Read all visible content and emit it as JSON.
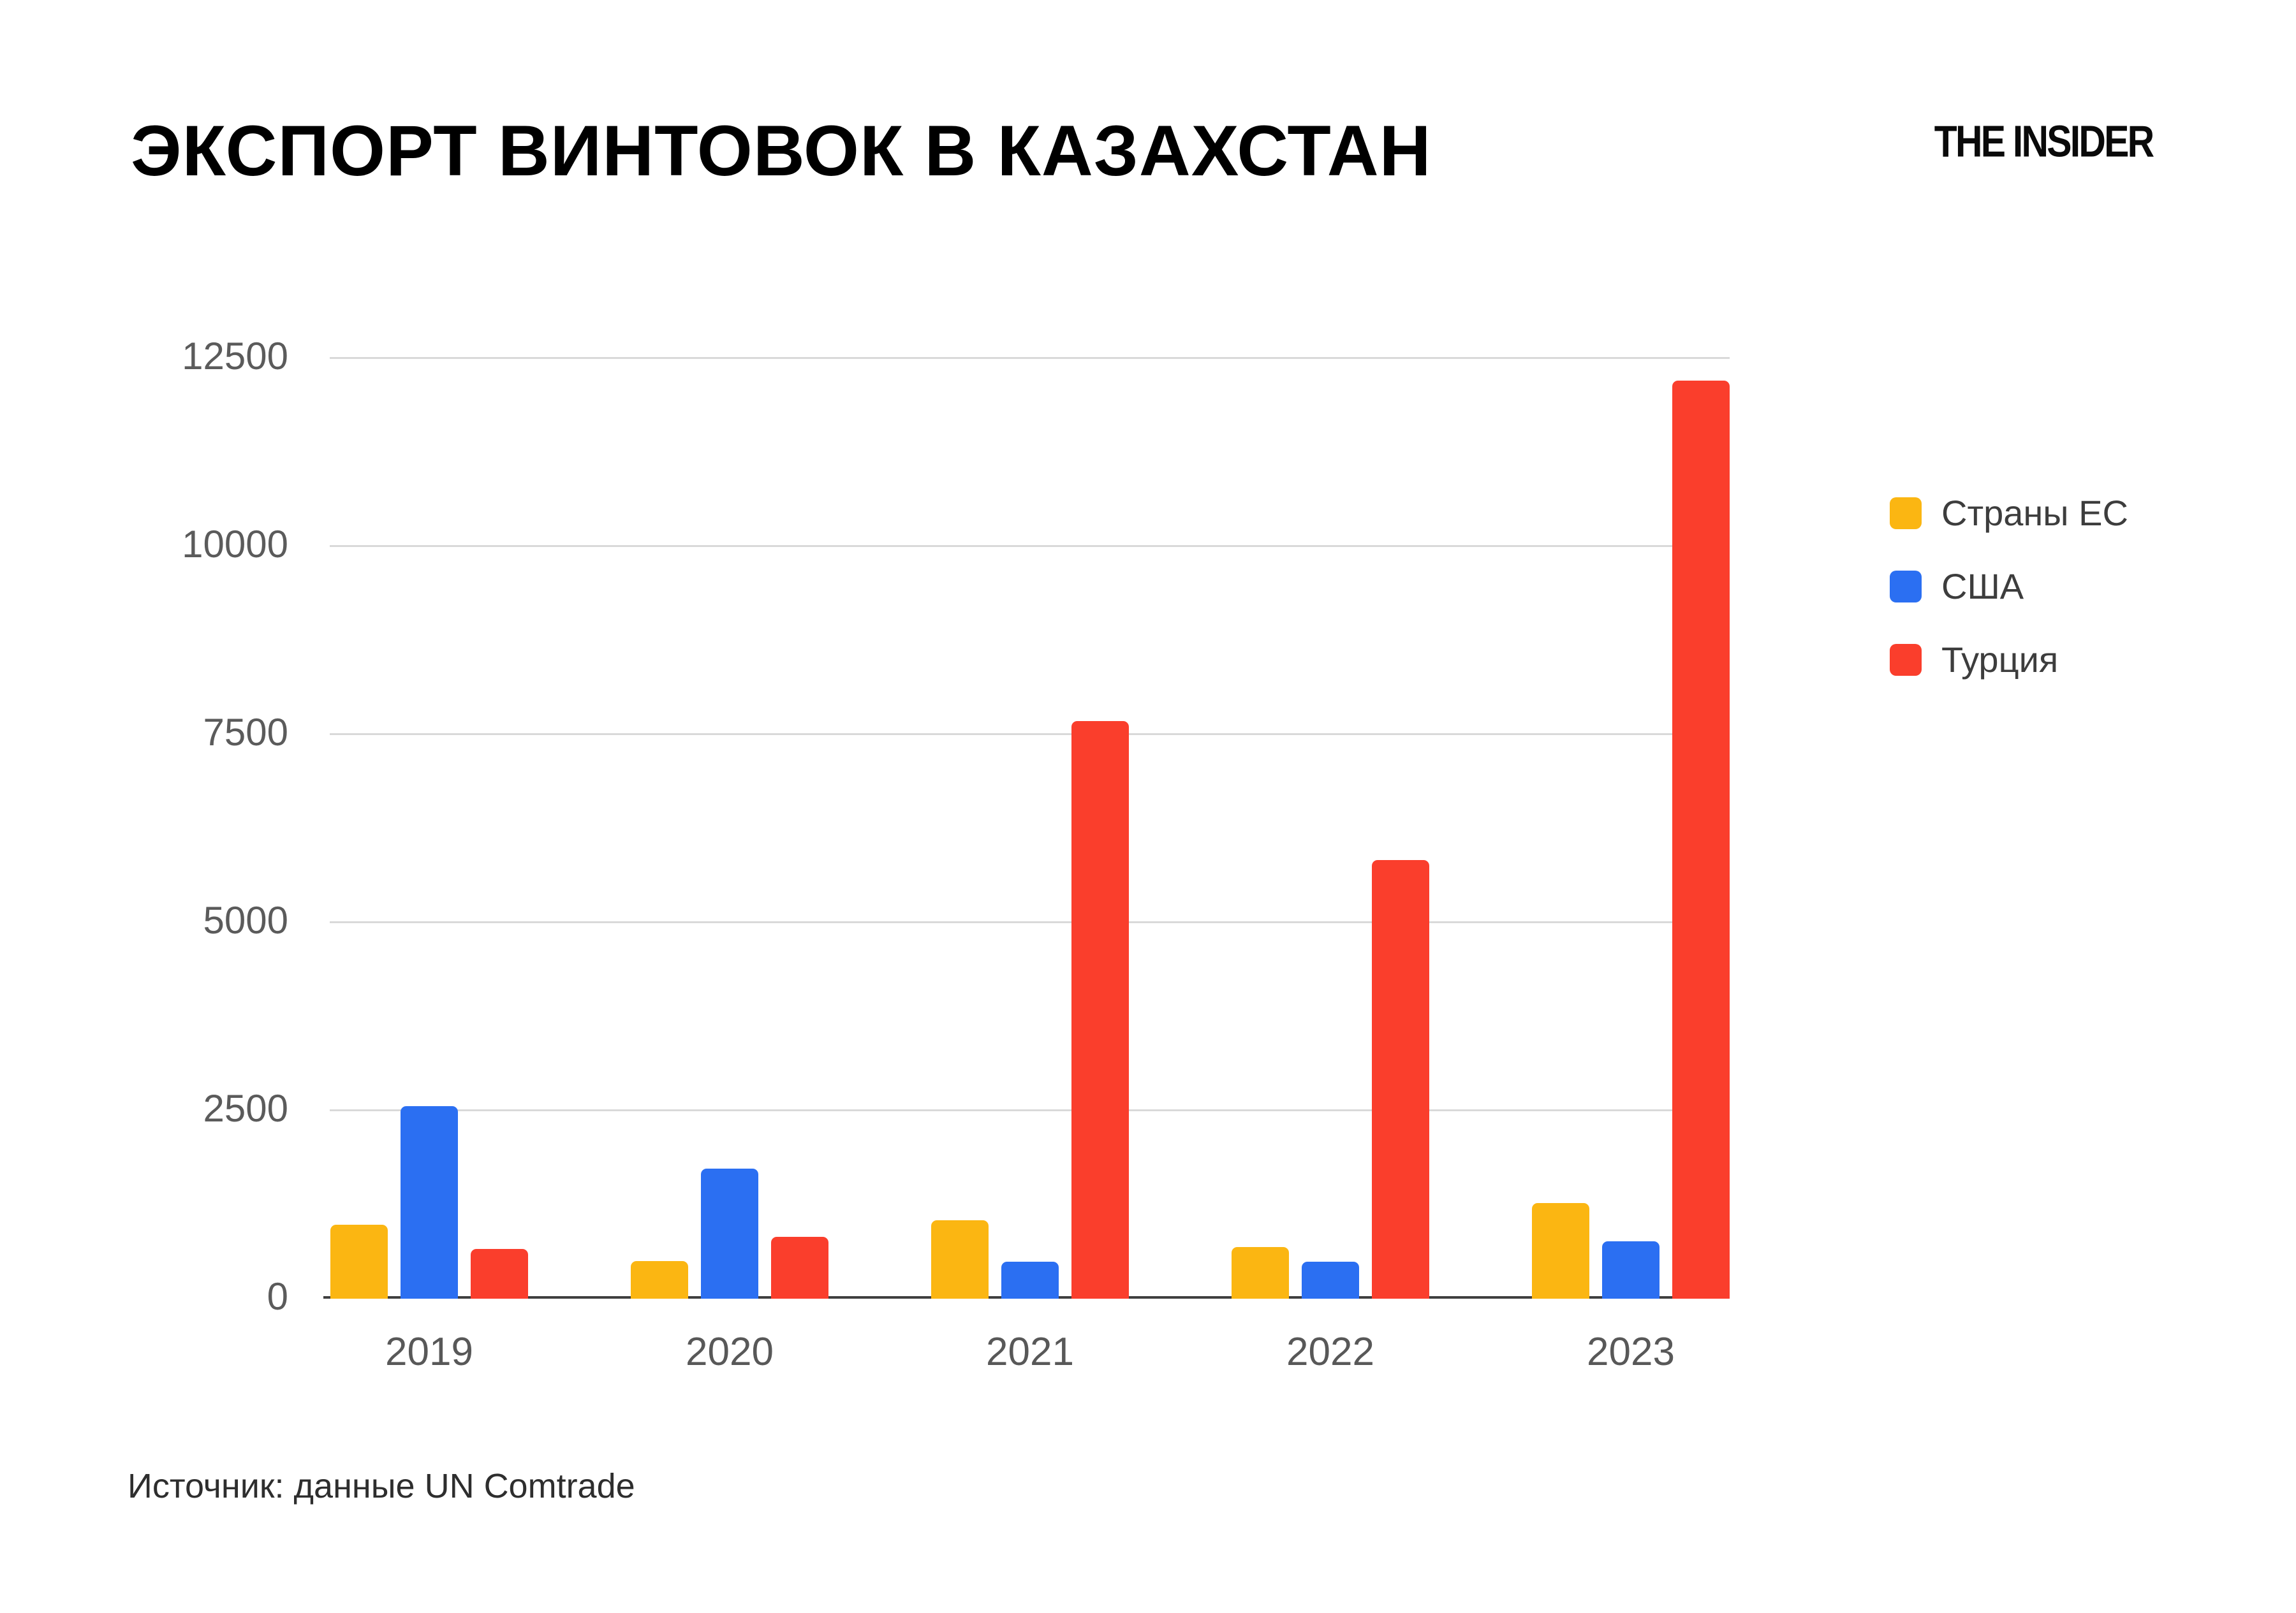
{
  "header": {
    "title": "ЭКСПОРТ ВИНТОВОК В КАЗАХСТАН",
    "brand": "THE INSIDER"
  },
  "source_note": "Источник: данные UN Comtrade",
  "colors": {
    "background": "#ffffff",
    "title": "#000000",
    "gridline": "#d9d9d9",
    "axis_line": "#3f3f3f",
    "tick_label": "#5b5b5b",
    "legend_label": "#3d3d3d",
    "series_eu": "#fbb612",
    "series_usa": "#2b6ff2",
    "series_turkey": "#fa3e2c"
  },
  "chart_data": {
    "type": "bar",
    "title": "ЭКСПОРТ ВИНТОВОК В КАЗАХСТАН",
    "categories": [
      "2019",
      "2020",
      "2021",
      "2022",
      "2023"
    ],
    "series": [
      {
        "name": "Страны ЕС",
        "color": "#fbb612",
        "values": [
          980,
          500,
          1040,
          690,
          1270
        ]
      },
      {
        "name": "США",
        "color": "#2b6ff2",
        "values": [
          2560,
          1730,
          490,
          490,
          760
        ]
      },
      {
        "name": "Турция",
        "color": "#fa3e2c",
        "values": [
          660,
          820,
          7680,
          5830,
          12200
        ]
      }
    ],
    "xlabel": "",
    "ylabel": "",
    "ylim": [
      0,
      12500
    ],
    "yticks": [
      0,
      2500,
      5000,
      7500,
      10000,
      12500
    ],
    "grid": true,
    "legend_position": "right",
    "source": "Источник: данные UN Comtrade"
  }
}
